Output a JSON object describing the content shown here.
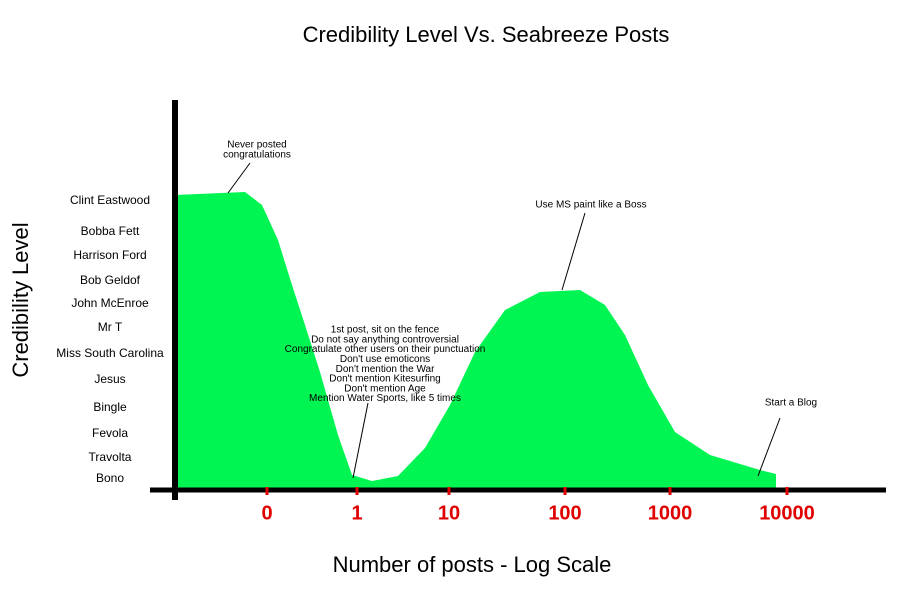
{
  "chart_data": {
    "type": "area",
    "title": "Credibility Level Vs. Seabreeze Posts",
    "xlabel": "Number of posts - Log Scale",
    "ylabel": "Credibility Level",
    "ycategories": [
      "Clint Eastwood",
      "Bobba Fett",
      "Harrison Ford",
      "Bob Geldof",
      "John McEnroe",
      "Mr T",
      "Miss South Carolina",
      "Jesus",
      "Bingle",
      "Fevola",
      "Travolta",
      "Bono"
    ],
    "xcategories": [
      "0",
      "1",
      "10",
      "100",
      "1000",
      "10000"
    ],
    "color": "#00f552",
    "annotations": [
      {
        "lines": [
          "Never posted",
          "congratulations"
        ]
      },
      {
        "lines": [
          "Use MS paint like a Boss"
        ]
      },
      {
        "lines": [
          "1st post, sit on the fence",
          "Do not say anything controversial",
          "Congratulate other users on their punctuation",
          "Don't use emoticons",
          "Don't mention the War",
          "Don't mention Kitesurfing",
          "Don't mention Age",
          "Mention Water Sports, like 5 times"
        ]
      },
      {
        "lines": [
          "Start a Blog"
        ]
      }
    ]
  }
}
